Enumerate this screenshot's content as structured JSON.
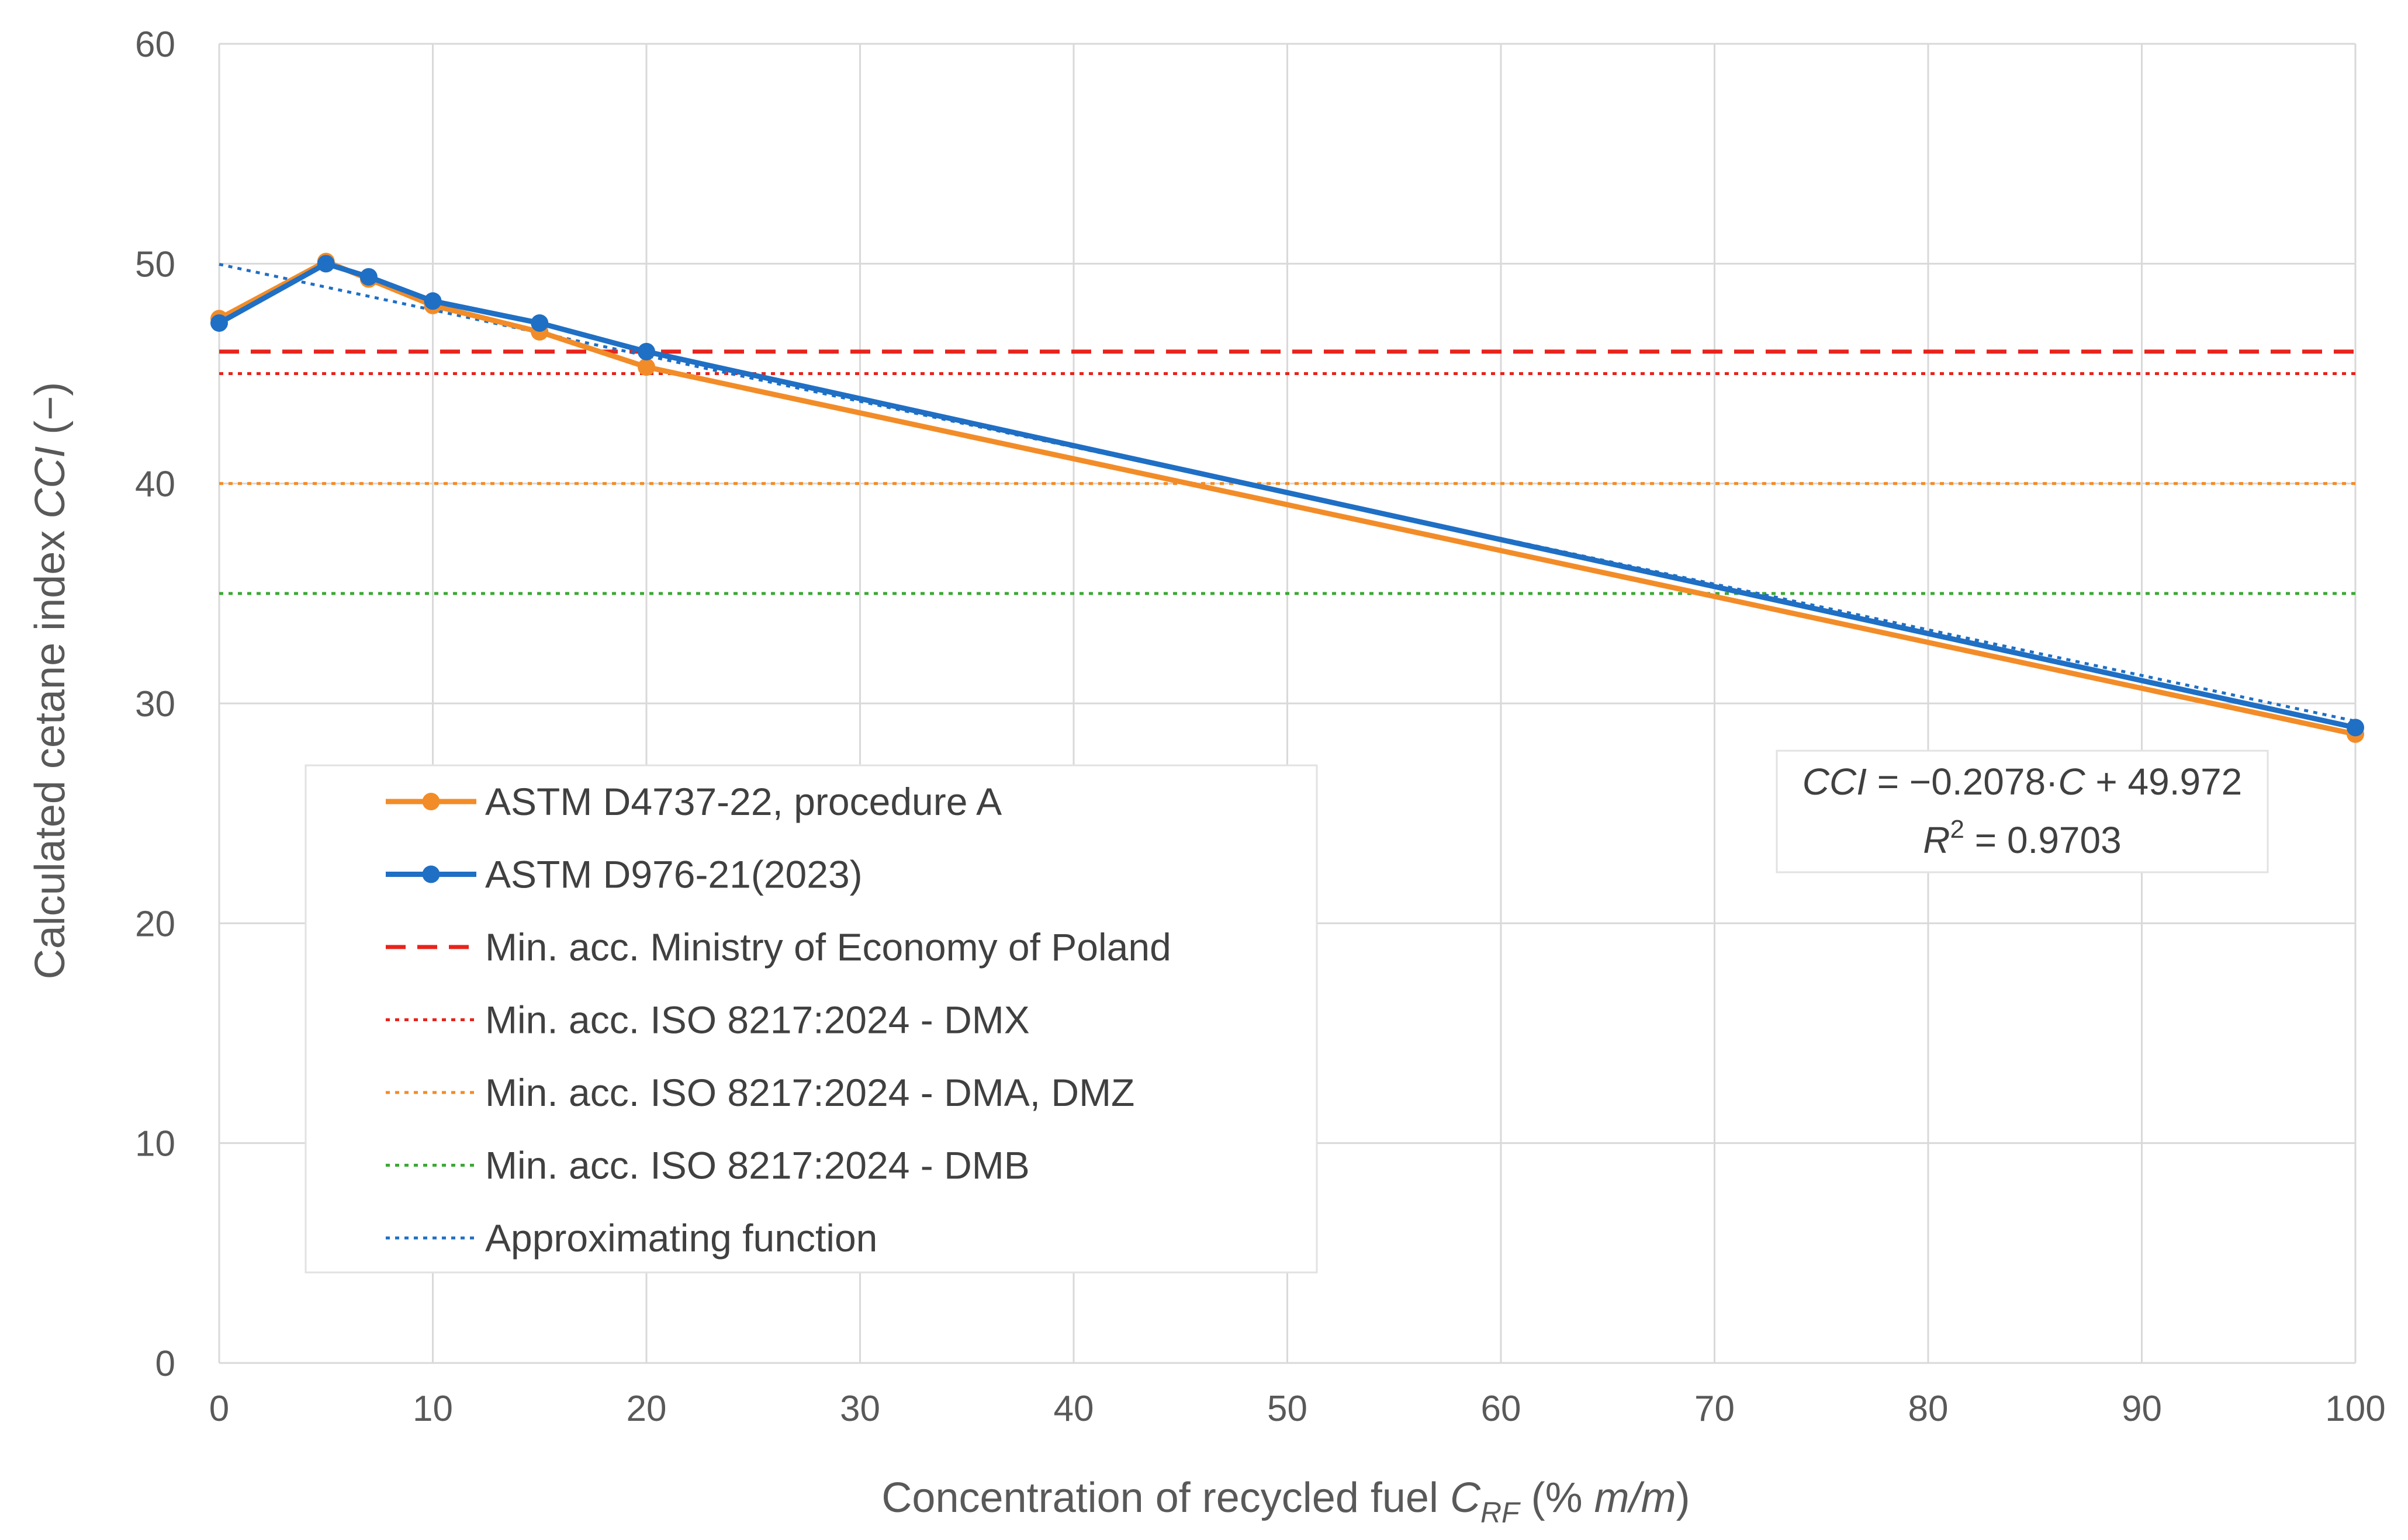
{
  "chart_data": {
    "type": "line",
    "title": "",
    "xlabel": {
      "pre": "Concentration of recycled fuel ",
      "var": "C",
      "sub": "RF",
      "post_a": " (% ",
      "unit": "m/m",
      "post_b": ")"
    },
    "ylabel": {
      "pre": "Calculated cetane index ",
      "var": "CCI",
      "post": " (−)"
    },
    "xlim": [
      0,
      100
    ],
    "ylim": [
      0,
      60
    ],
    "x_ticks": [
      0,
      10,
      20,
      30,
      40,
      50,
      60,
      70,
      80,
      90,
      100
    ],
    "y_ticks": [
      0,
      10,
      20,
      30,
      40,
      50,
      60
    ],
    "grid": true,
    "legend_position": "lower-left",
    "series": [
      {
        "name": "ASTM D4737-22, procedure A",
        "color": "#F28C28",
        "style": "solid-marker",
        "x": [
          0,
          5,
          7,
          10,
          15,
          20,
          100
        ],
        "y": [
          47.5,
          50.1,
          49.3,
          48.1,
          46.9,
          45.3,
          28.6
        ]
      },
      {
        "name": "ASTM D976-21(2023)",
        "color": "#1F6FC5",
        "style": "solid-marker",
        "x": [
          0,
          5,
          7,
          10,
          15,
          20,
          100
        ],
        "y": [
          47.3,
          50.0,
          49.4,
          48.3,
          47.3,
          46.0,
          28.9
        ]
      },
      {
        "name": "Min. acc. Ministry of Economy of Poland",
        "color": "#E8231B",
        "style": "dashed",
        "value": 46
      },
      {
        "name": "Min. acc. ISO 8217:2024 - DMX",
        "color": "#E8231B",
        "style": "dotted",
        "value": 45
      },
      {
        "name": "Min. acc. ISO 8217:2024 - DMA, DMZ",
        "color": "#F28C28",
        "style": "dotted",
        "value": 40
      },
      {
        "name": "Min. acc. ISO 8217:2024 - DMB",
        "color": "#3BA935",
        "style": "dotted",
        "value": 35
      },
      {
        "name": "Approximating function",
        "color": "#1F6FC5",
        "style": "dotted",
        "slope": -0.2078,
        "intercept": 49.972
      }
    ],
    "annotation": {
      "eq_var": "CCI",
      "eq_mid": " = −0.2078·",
      "eq_c": "C",
      "eq_end": " + 49.972",
      "r_var": "R",
      "r_sup": "2",
      "r_end": " = 0.9703"
    }
  }
}
